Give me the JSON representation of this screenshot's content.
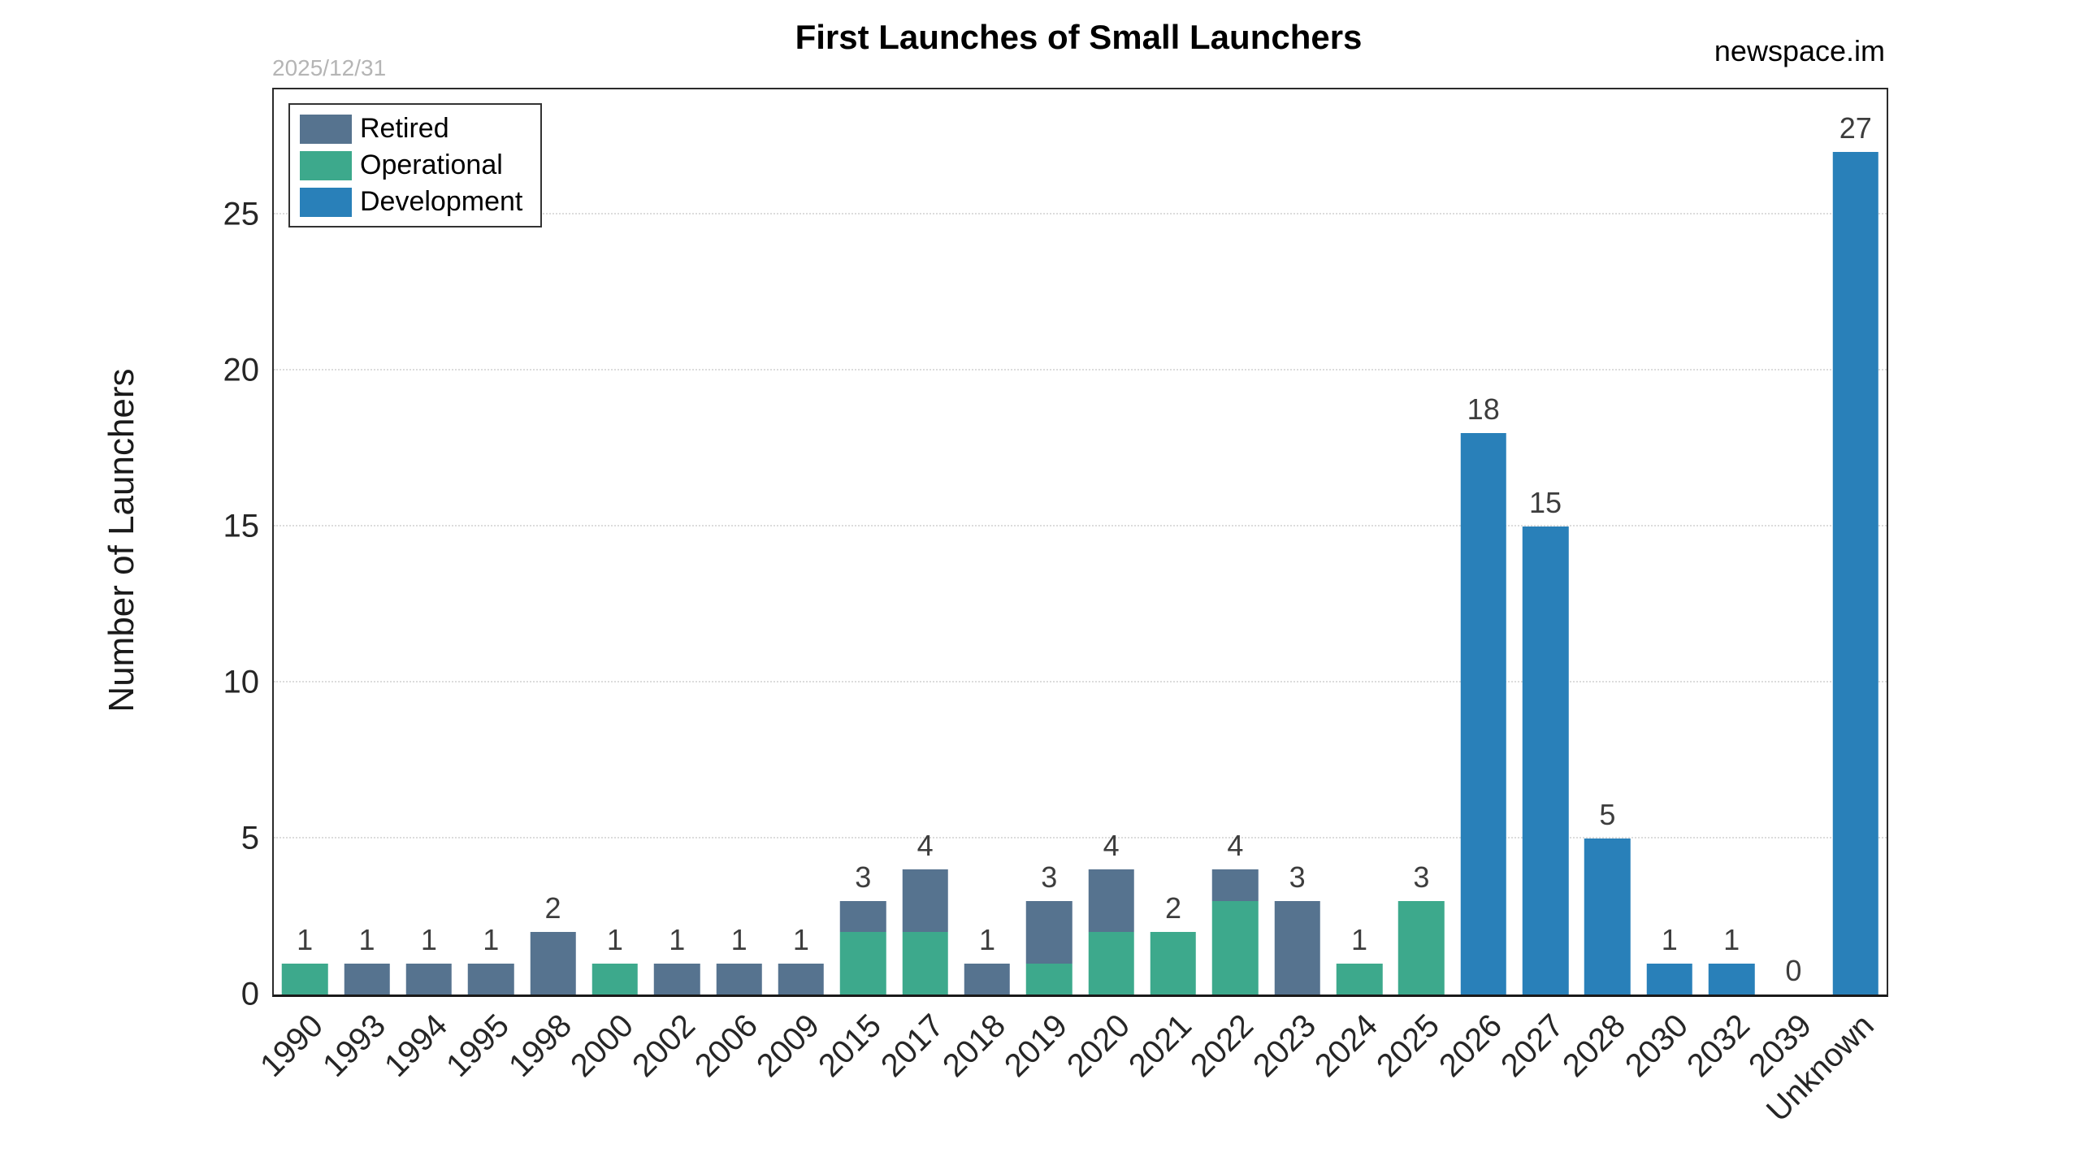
{
  "header": {
    "watermark": "2025/12/31",
    "title": "First Launches of Small Launchers",
    "brand": "newspace.im"
  },
  "axes": {
    "y_label": "Number of Launchers",
    "y_ticks": [
      0,
      5,
      10,
      15,
      20,
      25
    ],
    "grid_values": [
      5,
      10,
      15,
      20,
      25
    ],
    "y_max": 29
  },
  "legend": [
    {
      "label": "Retired",
      "color": "#56738F"
    },
    {
      "label": "Operational",
      "color": "#3DA98C"
    },
    {
      "label": "Development",
      "color": "#2980B9"
    }
  ],
  "chart_data": {
    "type": "bar",
    "stacked": true,
    "title": "First Launches of Small Launchers",
    "xlabel": "",
    "ylabel": "Number of Launchers",
    "ylim": [
      0,
      29
    ],
    "grid": "horizontal-dotted",
    "legend_position": "top-left",
    "categories": [
      "1990",
      "1993",
      "1994",
      "1995",
      "1998",
      "2000",
      "2002",
      "2006",
      "2009",
      "2015",
      "2017",
      "2018",
      "2019",
      "2020",
      "2021",
      "2022",
      "2023",
      "2024",
      "2025",
      "2026",
      "2027",
      "2028",
      "2030",
      "2032",
      "2039",
      "Unknown"
    ],
    "series": [
      {
        "name": "Retired",
        "color": "#56738F",
        "values": [
          0,
          1,
          1,
          1,
          2,
          0,
          1,
          1,
          1,
          1,
          2,
          1,
          2,
          2,
          0,
          1,
          3,
          0,
          0,
          0,
          0,
          0,
          0,
          0,
          0,
          0
        ]
      },
      {
        "name": "Operational",
        "color": "#3DA98C",
        "values": [
          1,
          0,
          0,
          0,
          0,
          1,
          0,
          0,
          0,
          2,
          2,
          0,
          1,
          2,
          2,
          3,
          0,
          1,
          3,
          0,
          0,
          0,
          0,
          0,
          0,
          0
        ]
      },
      {
        "name": "Development",
        "color": "#2980B9",
        "values": [
          0,
          0,
          0,
          0,
          0,
          0,
          0,
          0,
          0,
          0,
          0,
          0,
          0,
          0,
          0,
          0,
          0,
          0,
          0,
          18,
          15,
          5,
          1,
          1,
          0,
          27
        ]
      }
    ],
    "stack_order_bottom_to_top": [
      "Operational",
      "Retired",
      "Development"
    ],
    "totals": [
      1,
      1,
      1,
      1,
      2,
      1,
      1,
      1,
      1,
      3,
      4,
      1,
      3,
      4,
      2,
      4,
      3,
      1,
      3,
      18,
      15,
      5,
      1,
      1,
      0,
      27
    ]
  }
}
